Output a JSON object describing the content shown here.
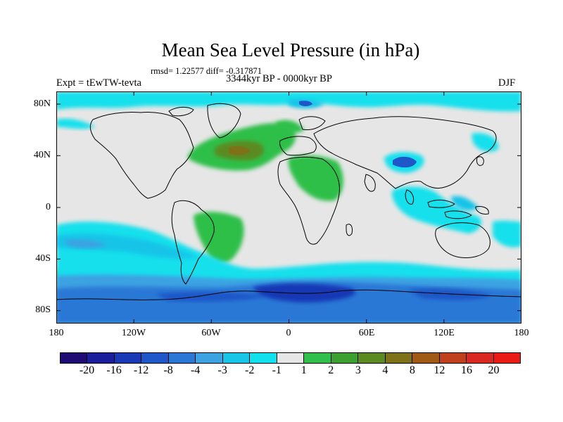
{
  "title": "Mean Sea Level Pressure (in hPa)",
  "stats": "rmsd= 1.22577 diff= -0.317871",
  "experiment": "Expt = tEwTW-tevta",
  "period": "3344kyr BP - 0000kyr BP",
  "season": "DJF",
  "lat_labels": [
    "80N",
    "40N",
    "0",
    "40S",
    "80S"
  ],
  "lon_labels": [
    "180",
    "120W",
    "60W",
    "0",
    "60E",
    "120E",
    "180"
  ],
  "colorbar": {
    "labels": [
      "-20",
      "-16",
      "-12",
      "-8",
      "-4",
      "-3",
      "-2",
      "-1",
      "1",
      "2",
      "3",
      "4",
      "8",
      "12",
      "16",
      "20"
    ],
    "colors": [
      "#1e0c74",
      "#1a1e9a",
      "#1838b5",
      "#1f56c8",
      "#2a78d6",
      "#3da2e2",
      "#18c4e8",
      "#12e0ec",
      "#e6e6e6",
      "#2fbf4a",
      "#3ca030",
      "#5c8a22",
      "#7e7218",
      "#a05a16",
      "#c0401e",
      "#d82820",
      "#ea1a14"
    ]
  }
}
